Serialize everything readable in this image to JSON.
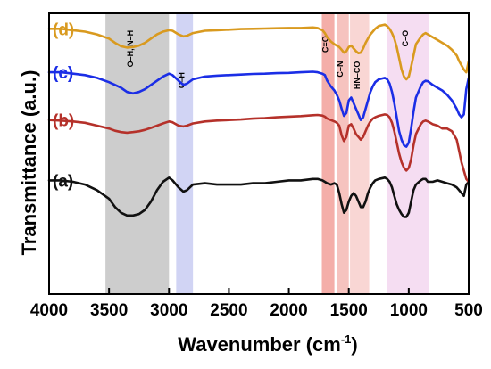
{
  "chart_data": {
    "type": "line",
    "xlabel_main": "Wavenumber (cm",
    "xlabel_sup": "-1",
    "xlabel_close": ")",
    "ylabel": "Transmittance (a.u.)",
    "xlim": [
      4000,
      500
    ],
    "x_reversed": true,
    "y_ticks_shown": false,
    "grid": false,
    "legend": "inline series labels at left",
    "x_ticks": [
      {
        "value": 4000,
        "label": "4000"
      },
      {
        "value": 3500,
        "label": "3500"
      },
      {
        "value": 3000,
        "label": "3000"
      },
      {
        "value": 2500,
        "label": "2500"
      },
      {
        "value": 2000,
        "label": "2000"
      },
      {
        "value": 1500,
        "label": "1500"
      },
      {
        "value": 1000,
        "label": "1000"
      },
      {
        "value": 500,
        "label": "500"
      }
    ],
    "bands": [
      {
        "from": 3530,
        "to": 3000,
        "color": "#c4c4c4",
        "label": "O–H, N–H",
        "label_at": 3300,
        "label_top": 0.94
      },
      {
        "from": 2940,
        "to": 2800,
        "color": "#c9cdf2",
        "label": "C–H",
        "label_at": 2870,
        "label_top": 0.79
      },
      {
        "from": 1725,
        "to": 1620,
        "color": "#f2a09a",
        "label": "C=O",
        "label_at": 1672,
        "label_top": 0.92
      },
      {
        "from": 1600,
        "to": 1500,
        "color": "#f5b8b4",
        "label": "C–N",
        "label_at": 1550,
        "label_top": 0.83
      },
      {
        "from": 1490,
        "to": 1330,
        "color": "#f8cfcc",
        "label": "HN–CO",
        "label_at": 1410,
        "label_top": 0.83
      },
      {
        "from": 1180,
        "to": 830,
        "color": "#f3d7f0",
        "label": "C–O",
        "label_at": 1005,
        "label_top": 0.94
      }
    ],
    "series": [
      {
        "name": "(a)",
        "color": "#111111",
        "x": [
          4000,
          3900,
          3800,
          3700,
          3600,
          3500,
          3450,
          3400,
          3350,
          3300,
          3250,
          3200,
          3150,
          3100,
          3050,
          3000,
          2970,
          2920,
          2880,
          2850,
          2800,
          2700,
          2600,
          2500,
          2400,
          2300,
          2200,
          2100,
          2000,
          1900,
          1800,
          1760,
          1720,
          1700,
          1680,
          1650,
          1620,
          1600,
          1580,
          1560,
          1540,
          1520,
          1500,
          1480,
          1460,
          1440,
          1420,
          1400,
          1380,
          1360,
          1340,
          1320,
          1300,
          1280,
          1250,
          1200,
          1180,
          1160,
          1140,
          1120,
          1100,
          1080,
          1060,
          1040,
          1020,
          1000,
          980,
          960,
          940,
          900,
          880,
          860,
          840,
          800,
          760,
          720,
          680,
          640,
          600,
          580,
          560,
          540,
          520,
          500
        ],
        "y": [
          0.405,
          0.405,
          0.4,
          0.39,
          0.37,
          0.34,
          0.31,
          0.29,
          0.28,
          0.28,
          0.285,
          0.3,
          0.33,
          0.37,
          0.4,
          0.415,
          0.405,
          0.38,
          0.365,
          0.37,
          0.39,
          0.395,
          0.39,
          0.39,
          0.39,
          0.395,
          0.395,
          0.4,
          0.405,
          0.405,
          0.41,
          0.41,
          0.405,
          0.4,
          0.395,
          0.39,
          0.395,
          0.39,
          0.36,
          0.32,
          0.29,
          0.3,
          0.33,
          0.35,
          0.36,
          0.35,
          0.33,
          0.31,
          0.31,
          0.33,
          0.36,
          0.38,
          0.395,
          0.405,
          0.41,
          0.415,
          0.41,
          0.4,
          0.38,
          0.35,
          0.32,
          0.3,
          0.285,
          0.275,
          0.275,
          0.29,
          0.33,
          0.37,
          0.39,
          0.405,
          0.41,
          0.41,
          0.4,
          0.4,
          0.405,
          0.4,
          0.395,
          0.39,
          0.38,
          0.37,
          0.36,
          0.35,
          0.39,
          0.4
        ]
      },
      {
        "name": "(b)",
        "color": "#b5312a",
        "x": [
          4000,
          3900,
          3800,
          3700,
          3600,
          3500,
          3450,
          3400,
          3350,
          3300,
          3250,
          3200,
          3150,
          3100,
          3050,
          3000,
          2970,
          2920,
          2880,
          2850,
          2800,
          2700,
          2600,
          2500,
          2400,
          2300,
          2200,
          2100,
          2000,
          1900,
          1800,
          1760,
          1720,
          1700,
          1680,
          1650,
          1620,
          1600,
          1580,
          1560,
          1540,
          1520,
          1500,
          1480,
          1460,
          1440,
          1420,
          1400,
          1380,
          1360,
          1340,
          1320,
          1300,
          1280,
          1250,
          1200,
          1180,
          1160,
          1140,
          1120,
          1100,
          1080,
          1060,
          1040,
          1020,
          1000,
          980,
          960,
          940,
          900,
          880,
          860,
          840,
          800,
          760,
          720,
          680,
          640,
          600,
          580,
          560,
          540,
          520,
          500
        ],
        "y": [
          0.62,
          0.618,
          0.615,
          0.61,
          0.6,
          0.59,
          0.582,
          0.577,
          0.575,
          0.577,
          0.58,
          0.585,
          0.592,
          0.6,
          0.608,
          0.615,
          0.612,
          0.6,
          0.597,
          0.6,
          0.608,
          0.615,
          0.618,
          0.62,
          0.622,
          0.625,
          0.627,
          0.63,
          0.632,
          0.634,
          0.637,
          0.638,
          0.636,
          0.632,
          0.625,
          0.62,
          0.615,
          0.61,
          0.6,
          0.565,
          0.545,
          0.56,
          0.6,
          0.605,
          0.59,
          0.57,
          0.56,
          0.55,
          0.56,
          0.58,
          0.6,
          0.615,
          0.625,
          0.63,
          0.635,
          0.64,
          0.638,
          0.63,
          0.61,
          0.58,
          0.54,
          0.5,
          0.47,
          0.45,
          0.44,
          0.45,
          0.48,
          0.53,
          0.57,
          0.605,
          0.615,
          0.618,
          0.615,
          0.605,
          0.6,
          0.59,
          0.59,
          0.58,
          0.55,
          0.51,
          0.47,
          0.44,
          0.41,
          0.4
        ]
      },
      {
        "name": "(c)",
        "color": "#1b2ee6",
        "x": [
          4000,
          3900,
          3800,
          3700,
          3600,
          3500,
          3450,
          3400,
          3350,
          3300,
          3250,
          3200,
          3150,
          3100,
          3050,
          3000,
          2970,
          2920,
          2880,
          2850,
          2800,
          2700,
          2600,
          2500,
          2400,
          2300,
          2200,
          2100,
          2000,
          1900,
          1800,
          1760,
          1720,
          1700,
          1680,
          1650,
          1620,
          1600,
          1580,
          1560,
          1540,
          1520,
          1500,
          1480,
          1460,
          1440,
          1420,
          1400,
          1380,
          1360,
          1340,
          1320,
          1300,
          1280,
          1250,
          1200,
          1180,
          1160,
          1140,
          1120,
          1100,
          1080,
          1060,
          1040,
          1020,
          1000,
          980,
          960,
          940,
          900,
          880,
          860,
          840,
          800,
          760,
          720,
          680,
          640,
          600,
          580,
          560,
          540,
          520,
          500
        ],
        "y": [
          0.79,
          0.79,
          0.785,
          0.78,
          0.77,
          0.755,
          0.745,
          0.735,
          0.72,
          0.715,
          0.72,
          0.73,
          0.745,
          0.76,
          0.775,
          0.785,
          0.78,
          0.76,
          0.745,
          0.75,
          0.765,
          0.775,
          0.778,
          0.78,
          0.782,
          0.784,
          0.785,
          0.787,
          0.788,
          0.79,
          0.792,
          0.79,
          0.785,
          0.78,
          0.76,
          0.74,
          0.725,
          0.71,
          0.69,
          0.66,
          0.635,
          0.645,
          0.69,
          0.7,
          0.68,
          0.66,
          0.64,
          0.62,
          0.63,
          0.66,
          0.69,
          0.72,
          0.74,
          0.755,
          0.765,
          0.77,
          0.765,
          0.75,
          0.72,
          0.68,
          0.63,
          0.58,
          0.55,
          0.53,
          0.525,
          0.54,
          0.59,
          0.65,
          0.7,
          0.74,
          0.755,
          0.76,
          0.758,
          0.745,
          0.735,
          0.725,
          0.71,
          0.69,
          0.66,
          0.64,
          0.63,
          0.64,
          0.73,
          0.77
        ]
      },
      {
        "name": "(d)",
        "color": "#d99a1f",
        "x": [
          4000,
          3900,
          3800,
          3700,
          3600,
          3500,
          3450,
          3400,
          3350,
          3300,
          3250,
          3200,
          3150,
          3100,
          3050,
          3000,
          2970,
          2920,
          2880,
          2850,
          2800,
          2700,
          2600,
          2500,
          2400,
          2300,
          2200,
          2100,
          2000,
          1900,
          1800,
          1760,
          1720,
          1700,
          1680,
          1650,
          1620,
          1600,
          1580,
          1560,
          1540,
          1520,
          1500,
          1480,
          1460,
          1440,
          1420,
          1400,
          1380,
          1360,
          1340,
          1320,
          1300,
          1280,
          1250,
          1200,
          1180,
          1160,
          1140,
          1120,
          1100,
          1080,
          1060,
          1040,
          1020,
          1000,
          980,
          960,
          940,
          900,
          880,
          860,
          840,
          800,
          760,
          720,
          680,
          640,
          600,
          580,
          560,
          540,
          520,
          500
        ],
        "y": [
          0.945,
          0.945,
          0.94,
          0.935,
          0.925,
          0.91,
          0.895,
          0.883,
          0.878,
          0.88,
          0.885,
          0.895,
          0.91,
          0.925,
          0.935,
          0.94,
          0.938,
          0.925,
          0.918,
          0.92,
          0.93,
          0.938,
          0.94,
          0.942,
          0.944,
          0.945,
          0.946,
          0.947,
          0.948,
          0.948,
          0.95,
          0.948,
          0.94,
          0.93,
          0.915,
          0.9,
          0.89,
          0.885,
          0.88,
          0.87,
          0.86,
          0.865,
          0.88,
          0.885,
          0.875,
          0.865,
          0.858,
          0.86,
          0.875,
          0.895,
          0.91,
          0.925,
          0.935,
          0.945,
          0.955,
          0.96,
          0.955,
          0.945,
          0.93,
          0.91,
          0.88,
          0.84,
          0.8,
          0.775,
          0.765,
          0.775,
          0.81,
          0.85,
          0.89,
          0.915,
          0.925,
          0.93,
          0.925,
          0.915,
          0.905,
          0.895,
          0.885,
          0.87,
          0.85,
          0.83,
          0.815,
          0.8,
          0.79,
          0.83
        ]
      }
    ]
  }
}
